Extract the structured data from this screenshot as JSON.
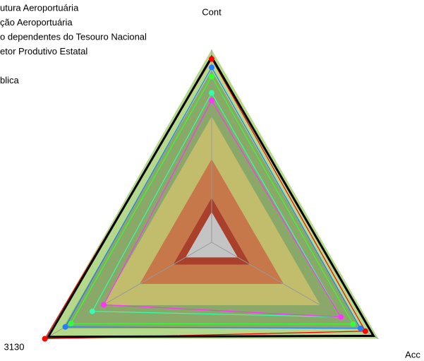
{
  "chart_data": {
    "type": "radar",
    "categories": [
      "Cont",
      "Acc",
      "3130"
    ],
    "rlim": [
      0,
      102
    ],
    "bands": [
      {
        "value": 102,
        "color": "#b5d98a"
      },
      {
        "value": 91,
        "color": "#8aa868"
      },
      {
        "value": 66.5,
        "color": "#c2bd6c"
      },
      {
        "value": 44,
        "color": "#c7784a"
      },
      {
        "value": 23.5,
        "color": "#a8402c"
      },
      {
        "value": 16,
        "color": "#c4c4c4"
      }
    ],
    "series": [
      {
        "name": "utura Aeroportuária",
        "color": "#ff0000",
        "values": [
          97,
          94,
          102
        ]
      },
      {
        "name": "ção Aeroportuária",
        "color": "#1e7fff",
        "values": [
          92.5,
          91,
          89.5
        ]
      },
      {
        "name": "o dependentes do Tesouro Nacional",
        "color": "#33ff33",
        "values": [
          87.7,
          86.5,
          86
        ]
      },
      {
        "name": "etor Produtivo Estatal",
        "color": "#33ffaa",
        "values": [
          79,
          79,
          73
        ]
      },
      {
        "name": null,
        "color": "#000000",
        "values": [
          98,
          99,
          100
        ]
      },
      {
        "name": "blica",
        "color": "#ff33ff",
        "values": [
          75,
          79,
          66
        ]
      }
    ]
  }
}
